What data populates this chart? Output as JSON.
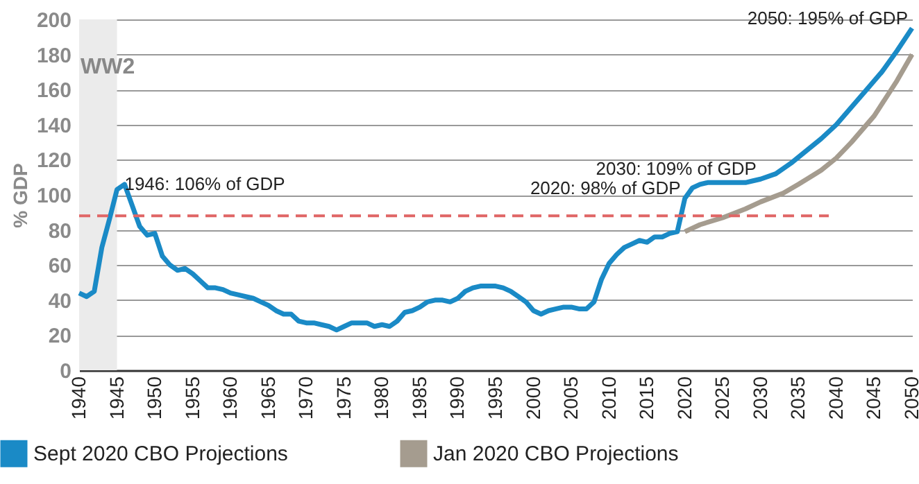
{
  "chart_data": {
    "type": "line",
    "ylabel": "% GDP",
    "xlim": [
      1940,
      2050
    ],
    "ylim": [
      0,
      200
    ],
    "xticks": [
      1940,
      1945,
      1950,
      1955,
      1960,
      1965,
      1970,
      1975,
      1980,
      1985,
      1990,
      1995,
      2000,
      2005,
      2010,
      2015,
      2020,
      2025,
      2030,
      2035,
      2040,
      2045,
      2050
    ],
    "yticks": [
      0,
      20,
      40,
      60,
      80,
      100,
      120,
      140,
      160,
      180,
      200
    ],
    "grid": "y",
    "legend": "bottom",
    "line_style": "solid",
    "marker": "none",
    "series": [
      {
        "name": "Sept 2020 CBO Projections",
        "color": "#1a8ac6",
        "x": [
          1940,
          1941,
          1942,
          1943,
          1944,
          1945,
          1946,
          1947,
          1948,
          1949,
          1950,
          1951,
          1952,
          1953,
          1954,
          1955,
          1956,
          1957,
          1958,
          1959,
          1960,
          1961,
          1962,
          1963,
          1964,
          1965,
          1966,
          1967,
          1968,
          1969,
          1970,
          1971,
          1972,
          1973,
          1974,
          1975,
          1976,
          1977,
          1978,
          1979,
          1980,
          1981,
          1982,
          1983,
          1984,
          1985,
          1986,
          1987,
          1988,
          1989,
          1990,
          1991,
          1992,
          1993,
          1994,
          1995,
          1996,
          1997,
          1998,
          1999,
          2000,
          2001,
          2002,
          2003,
          2004,
          2005,
          2006,
          2007,
          2008,
          2009,
          2010,
          2011,
          2012,
          2013,
          2014,
          2015,
          2016,
          2017,
          2018,
          2019,
          2020,
          2021,
          2022,
          2023,
          2024,
          2025,
          2026,
          2027,
          2028,
          2029,
          2030,
          2032,
          2034,
          2036,
          2038,
          2040,
          2042,
          2044,
          2046,
          2048,
          2050
        ],
        "values": [
          44,
          42,
          45,
          70,
          86,
          103,
          106,
          94,
          82,
          77,
          78,
          65,
          60,
          57,
          58,
          55,
          51,
          47,
          47,
          46,
          44,
          43,
          42,
          41,
          39,
          37,
          34,
          32,
          32,
          28,
          27,
          27,
          26,
          25,
          23,
          25,
          27,
          27,
          27,
          25,
          26,
          25,
          28,
          33,
          34,
          36,
          39,
          40,
          40,
          39,
          41,
          45,
          47,
          48,
          48,
          48,
          47,
          45,
          42,
          39,
          34,
          32,
          34,
          35,
          36,
          36,
          35,
          35,
          39,
          52,
          61,
          66,
          70,
          72,
          74,
          73,
          76,
          76,
          78,
          79,
          98,
          104,
          106,
          107,
          107,
          107,
          107,
          107,
          107,
          108,
          109,
          112,
          118,
          125,
          132,
          140,
          150,
          160,
          170,
          182,
          195
        ]
      },
      {
        "name": "Jan 2020 CBO Projections",
        "color": "#a59c8f",
        "x": [
          2020,
          2022,
          2025,
          2028,
          2030,
          2033,
          2035,
          2038,
          2040,
          2042,
          2045,
          2048,
          2050
        ],
        "values": [
          79,
          83,
          87,
          92,
          96,
          101,
          106,
          114,
          121,
          130,
          145,
          165,
          180
        ]
      },
      {
        "color": "#e06666",
        "line_style": "dashed",
        "x": [
          1940,
          2039
        ],
        "values": [
          88,
          88
        ]
      }
    ],
    "bands": [
      {
        "axis": "x",
        "from": 1940,
        "to": 1945,
        "label": "WW2",
        "color": "#ebebeb"
      }
    ],
    "annotations": [
      {
        "text": "1946: 106% of GDP",
        "x": 1946,
        "y": 106
      },
      {
        "text": "2020: 98% of GDP",
        "x": 2020,
        "y": 98
      },
      {
        "text": "2030: 109% of GDP",
        "x": 2030,
        "y": 109
      },
      {
        "text": "2050: 195% of GDP",
        "x": 2050,
        "y": 195
      }
    ]
  }
}
